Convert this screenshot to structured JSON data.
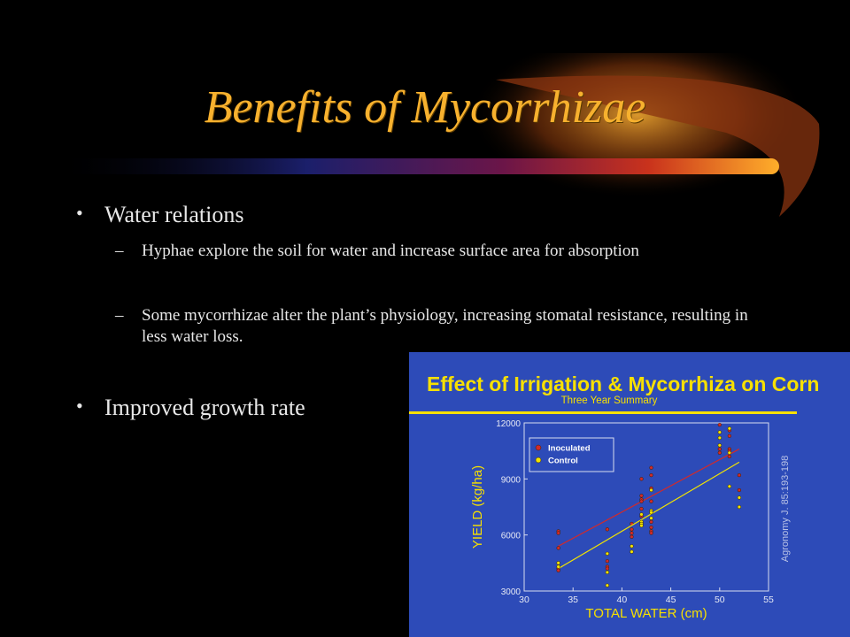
{
  "slide": {
    "title": "Benefits of Mycorrhizae",
    "bullets": [
      {
        "text": "Water relations",
        "subbullets": [
          "Hyphae explore the soil for water and increase surface area for absorption",
          "Some mycorrhizae alter the plant’s physiology, increasing stomatal resistance, resulting in less water loss."
        ]
      },
      {
        "text": "Improved growth rate"
      }
    ],
    "bullet_glyph": "•",
    "dash_glyph": "–"
  },
  "colors": {
    "title": "#F7B12E",
    "text": "#E8E8E8",
    "chart_bg": "#2D4BB8",
    "inoculated": "#D22A2A",
    "control": "#F2E400"
  },
  "chart_data": {
    "type": "scatter",
    "title": "Effect of Irrigation & Mycorrhiza on Corn",
    "subtitle": "Three Year Summary",
    "xlabel": "TOTAL WATER (cm)",
    "ylabel": "YIELD (kg/ha)",
    "annotation": "Agronomy J. 85:193-198",
    "xlim": [
      30,
      55
    ],
    "ylim": [
      3000,
      12000
    ],
    "xticks": [
      30,
      35,
      40,
      45,
      50,
      55
    ],
    "yticks": [
      3000,
      6000,
      9000,
      12000
    ],
    "legend_position": "top-left",
    "series": [
      {
        "name": "Inoculated",
        "points": [
          [
            33.5,
            6200
          ],
          [
            33.5,
            6100
          ],
          [
            33.5,
            5300
          ],
          [
            33.5,
            4200
          ],
          [
            33.5,
            4100
          ],
          [
            38.5,
            6300
          ],
          [
            38.5,
            4600
          ],
          [
            38.5,
            4300
          ],
          [
            38.5,
            4200
          ],
          [
            41,
            6600
          ],
          [
            41,
            6300
          ],
          [
            41,
            6100
          ],
          [
            41,
            5900
          ],
          [
            42,
            9000
          ],
          [
            42,
            8100
          ],
          [
            42,
            7900
          ],
          [
            42,
            7800
          ],
          [
            42,
            7400
          ],
          [
            42,
            7000
          ],
          [
            43,
            9600
          ],
          [
            43,
            9200
          ],
          [
            43,
            8500
          ],
          [
            43,
            7800
          ],
          [
            43,
            6700
          ],
          [
            43,
            6400
          ],
          [
            43,
            6200
          ],
          [
            43,
            6100
          ],
          [
            50,
            11900
          ],
          [
            50,
            10600
          ],
          [
            50,
            10400
          ],
          [
            51,
            11600
          ],
          [
            51,
            11300
          ],
          [
            51,
            10600
          ],
          [
            51,
            10500
          ],
          [
            51,
            10200
          ],
          [
            52,
            9200
          ],
          [
            52,
            8400
          ]
        ],
        "fit": [
          [
            33.5,
            5400
          ],
          [
            52,
            10600
          ]
        ]
      },
      {
        "name": "Control",
        "points": [
          [
            33.5,
            4500
          ],
          [
            33.5,
            4300
          ],
          [
            38.5,
            5000
          ],
          [
            38.5,
            4000
          ],
          [
            38.5,
            3300
          ],
          [
            41,
            5400
          ],
          [
            41,
            5100
          ],
          [
            42,
            7100
          ],
          [
            42,
            6700
          ],
          [
            42,
            6600
          ],
          [
            42,
            6500
          ],
          [
            43,
            8400
          ],
          [
            43,
            7300
          ],
          [
            43,
            7200
          ],
          [
            43,
            6900
          ],
          [
            50,
            11500
          ],
          [
            50,
            11200
          ],
          [
            50,
            10800
          ],
          [
            51,
            11700
          ],
          [
            51,
            10400
          ],
          [
            51,
            8600
          ],
          [
            52,
            8000
          ],
          [
            52,
            7500
          ]
        ],
        "fit": [
          [
            33.5,
            4200
          ],
          [
            52,
            9900
          ]
        ]
      }
    ]
  }
}
